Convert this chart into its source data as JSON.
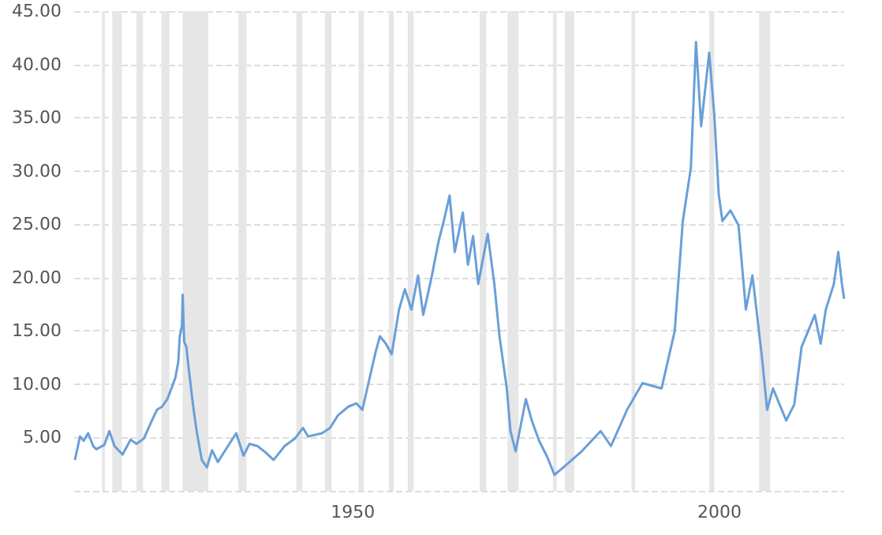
{
  "chart_data": {
    "type": "line",
    "color": "#6a9fd8",
    "x": [
      1912.1,
      1912.8,
      1913.3,
      1913.9,
      1914.6,
      1915.0,
      1916.1,
      1916.8,
      1917.5,
      1918.6,
      1919.7,
      1920.5,
      1921.5,
      1922.6,
      1923.3,
      1924.0,
      1924.7,
      1925.1,
      1925.8,
      1926.2,
      1926.4,
      1926.7,
      1926.8,
      1927.0,
      1927.3,
      1927.6,
      1928.2,
      1928.7,
      1929.4,
      1930.1,
      1930.8,
      1931.6,
      1932.7,
      1934.1,
      1935.1,
      1935.9,
      1937.0,
      1938.1,
      1939.2,
      1940.7,
      1942.1,
      1943.2,
      1943.9,
      1945.8,
      1946.9,
      1948.0,
      1949.4,
      1950.5,
      1951.3,
      1952.3,
      1953.1,
      1953.7,
      1954.5,
      1955.3,
      1956.3,
      1957.1,
      1958.0,
      1958.9,
      1959.6,
      1960.7,
      1961.7,
      1962.4,
      1963.2,
      1963.9,
      1965.0,
      1965.7,
      1966.4,
      1967.1,
      1968.4,
      1969.3,
      1970.0,
      1971.0,
      1971.5,
      1972.2,
      1973.6,
      1974.4,
      1975.4,
      1976.5,
      1977.5,
      1978.7,
      1981.2,
      1983.8,
      1985.2,
      1987.4,
      1989.5,
      1992.1,
      1993.9,
      1995.0,
      1996.1,
      1996.8,
      1997.5,
      1998.6,
      1999.3,
      1999.9,
      2000.4,
      2001.5,
      2002.6,
      2003.6,
      2004.5,
      2005.8,
      2006.5,
      2007.3,
      2009.1,
      2010.2,
      2011.2,
      2013.0,
      2013.8,
      2014.5,
      2015.6,
      2016.2,
      2016.7,
      2017.0
    ],
    "values": [
      2.9,
      5.1,
      4.7,
      5.4,
      4.2,
      3.9,
      4.3,
      5.6,
      4.2,
      3.4,
      4.8,
      4.4,
      4.9,
      6.6,
      7.6,
      7.9,
      8.6,
      9.3,
      10.6,
      12.1,
      14.5,
      15.5,
      18.4,
      14.0,
      13.5,
      11.6,
      8.1,
      5.6,
      2.9,
      2.2,
      3.8,
      2.7,
      3.9,
      5.4,
      3.3,
      4.4,
      4.2,
      3.6,
      2.9,
      4.2,
      4.9,
      5.9,
      5.1,
      5.4,
      5.9,
      7.1,
      7.9,
      8.2,
      7.6,
      10.6,
      13.0,
      14.5,
      13.8,
      12.8,
      17.0,
      18.9,
      17.0,
      20.2,
      16.5,
      19.9,
      23.4,
      25.3,
      27.7,
      22.4,
      26.1,
      21.2,
      23.9,
      19.4,
      24.1,
      19.4,
      14.5,
      9.6,
      5.6,
      3.7,
      8.6,
      6.6,
      4.7,
      3.2,
      1.5,
      2.2,
      3.7,
      5.6,
      4.2,
      7.6,
      10.1,
      9.6,
      15.0,
      25.3,
      30.3,
      42.1,
      34.2,
      41.1,
      35.2,
      27.8,
      25.3,
      26.3,
      24.9,
      17.0,
      20.2,
      12.5,
      7.6,
      9.6,
      6.6,
      8.1,
      13.5,
      16.5,
      13.8,
      17.0,
      19.4,
      22.4,
      19.4,
      18.0
    ],
    "xlim": [
      1912,
      2017
    ],
    "xticks": [
      1950,
      2000
    ],
    "ylim": [
      0,
      45
    ],
    "yticks": [
      {
        "value": 0,
        "label": null
      },
      {
        "value": 5,
        "label": "5.00"
      },
      {
        "value": 10,
        "label": "10.00"
      },
      {
        "value": 15,
        "label": "15.00"
      },
      {
        "value": 20,
        "label": "20.00"
      },
      {
        "value": 25,
        "label": "25.00"
      },
      {
        "value": 30,
        "label": "30.00"
      },
      {
        "value": 35,
        "label": "35.00"
      },
      {
        "value": 40,
        "label": "40.00"
      },
      {
        "value": 45,
        "label": "45.00"
      }
    ],
    "grid": "y",
    "marker": "none",
    "line_style": "solid",
    "bands": [
      {
        "axis": "x",
        "from": 1915.8,
        "to": 1916.2,
        "color": "#e6e6e6"
      },
      {
        "axis": "x",
        "from": 1917.2,
        "to": 1918.5,
        "color": "#e6e6e6"
      },
      {
        "axis": "x",
        "from": 1920.5,
        "to": 1921.4,
        "color": "#e6e6e6"
      },
      {
        "axis": "x",
        "from": 1923.9,
        "to": 1925.0,
        "color": "#e6e6e6"
      },
      {
        "axis": "x",
        "from": 1926.8,
        "to": 1930.3,
        "color": "#e6e6e6"
      },
      {
        "axis": "x",
        "from": 1934.4,
        "to": 1935.5,
        "color": "#e6e6e6"
      },
      {
        "axis": "x",
        "from": 1942.3,
        "to": 1943.1,
        "color": "#e6e6e6"
      },
      {
        "axis": "x",
        "from": 1946.2,
        "to": 1947.1,
        "color": "#e6e6e6"
      },
      {
        "axis": "x",
        "from": 1950.8,
        "to": 1951.5,
        "color": "#e6e6e6"
      },
      {
        "axis": "x",
        "from": 1954.9,
        "to": 1955.6,
        "color": "#e6e6e6"
      },
      {
        "axis": "x",
        "from": 1957.5,
        "to": 1958.3,
        "color": "#e6e6e6"
      },
      {
        "axis": "x",
        "from": 1967.3,
        "to": 1968.2,
        "color": "#e6e6e6"
      },
      {
        "axis": "x",
        "from": 1971.1,
        "to": 1972.6,
        "color": "#e6e6e6"
      },
      {
        "axis": "x",
        "from": 1977.3,
        "to": 1977.8,
        "color": "#e6e6e6"
      },
      {
        "axis": "x",
        "from": 1978.9,
        "to": 1980.2,
        "color": "#e6e6e6"
      },
      {
        "axis": "x",
        "from": 1988.0,
        "to": 1988.5,
        "color": "#e6e6e6"
      },
      {
        "axis": "x",
        "from": 1998.6,
        "to": 1999.3,
        "color": "#e6e6e6"
      },
      {
        "axis": "x",
        "from": 2005.4,
        "to": 2006.9,
        "color": "#e6e6e6"
      }
    ]
  }
}
